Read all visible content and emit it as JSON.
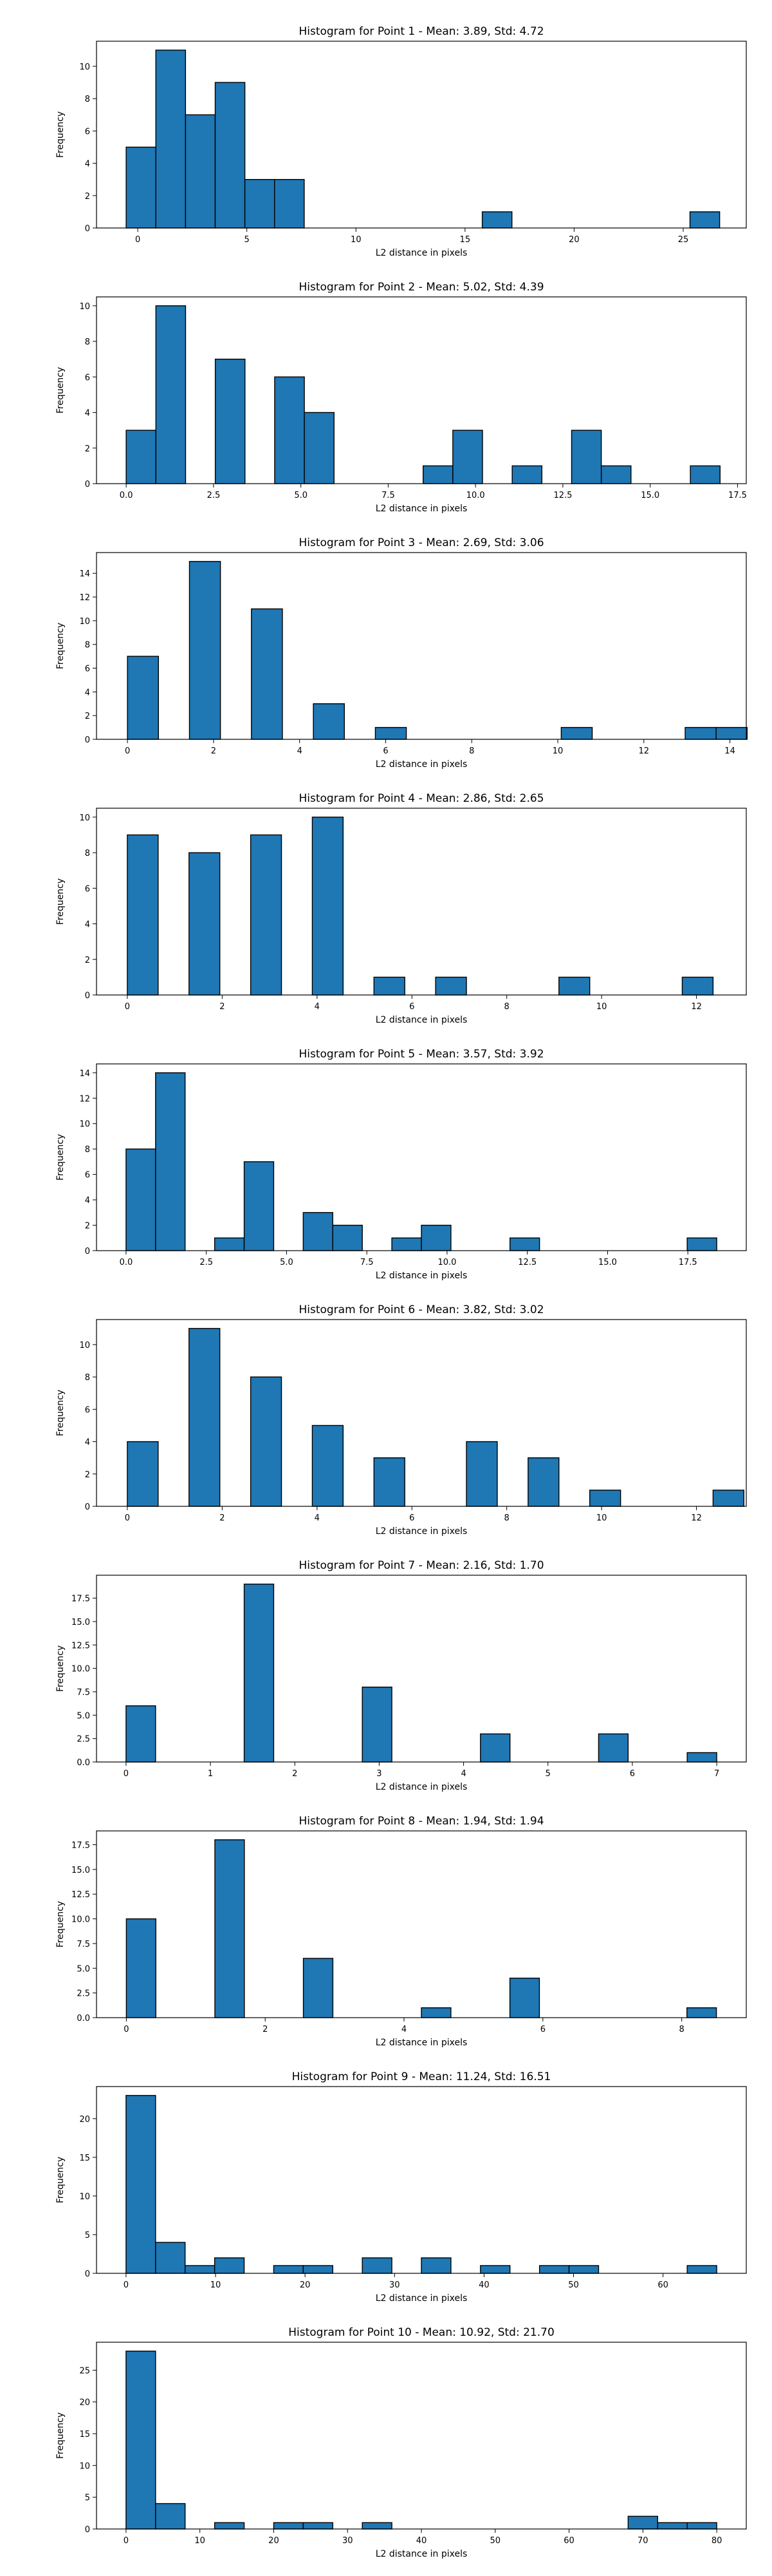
{
  "figure": {
    "background": "#ffffff"
  },
  "style": {
    "bar_fill": "#1f77b4",
    "bar_edge": "#000000",
    "axes_color": "#000000"
  },
  "chart_data": [
    {
      "type": "bar",
      "title": "Histogram for Point 1 - Mean: 3.89, Std: 4.72",
      "xlabel": "L2 distance in pixels",
      "ylabel": "Frequency",
      "grid": false,
      "xlim": [
        -1.89,
        27.89
      ],
      "ylim": [
        0,
        11.55
      ],
      "xticks": [
        0,
        5,
        10,
        15,
        20,
        25
      ],
      "xtick_labels": [
        "0",
        "5",
        "10",
        "15",
        "20",
        "25"
      ],
      "yticks": [
        0,
        2,
        4,
        6,
        8,
        10
      ],
      "ytick_labels": [
        "0",
        "2",
        "4",
        "6",
        "8",
        "10"
      ],
      "bin_edges": [
        -0.53,
        0.83,
        2.19,
        3.55,
        4.91,
        6.27,
        7.63,
        8.99,
        10.35,
        11.71,
        13.07,
        14.43,
        15.79,
        17.15,
        18.51,
        19.87,
        21.23,
        22.59,
        23.95,
        25.31,
        26.67
      ],
      "counts": [
        5,
        11,
        7,
        9,
        3,
        3,
        0,
        0,
        0,
        0,
        0,
        0,
        1,
        0,
        0,
        0,
        0,
        0,
        0,
        1
      ]
    },
    {
      "type": "bar",
      "title": "Histogram for Point 2 - Mean: 5.02, Std: 4.39",
      "xlabel": "L2 distance in pixels",
      "ylabel": "Frequency",
      "grid": false,
      "xlim": [
        -0.85,
        17.75
      ],
      "ylim": [
        0,
        10.5
      ],
      "xticks": [
        0,
        2.5,
        5,
        7.5,
        10,
        12.5,
        15,
        17.5
      ],
      "xtick_labels": [
        "0.0",
        "2.5",
        "5.0",
        "7.5",
        "10.0",
        "12.5",
        "15.0",
        "17.5"
      ],
      "yticks": [
        0,
        2,
        4,
        6,
        8,
        10
      ],
      "ytick_labels": [
        "0",
        "2",
        "4",
        "6",
        "8",
        "10"
      ],
      "bin_edges": [
        0.0,
        0.85,
        1.7,
        2.55,
        3.4,
        4.25,
        5.1,
        5.95,
        6.8,
        7.65,
        8.5,
        9.35,
        10.2,
        11.05,
        11.9,
        12.75,
        13.6,
        14.45,
        15.3,
        16.15,
        17.0
      ],
      "counts": [
        3,
        10,
        0,
        7,
        0,
        6,
        4,
        0,
        0,
        0,
        1,
        3,
        0,
        1,
        0,
        3,
        1,
        0,
        0,
        1
      ]
    },
    {
      "type": "bar",
      "title": "Histogram for Point 3 - Mean: 2.69, Std: 3.06",
      "xlabel": "L2 distance in pixels",
      "ylabel": "Frequency",
      "grid": false,
      "xlim": [
        -0.72,
        14.38
      ],
      "ylim": [
        0,
        15.75
      ],
      "xticks": [
        0,
        2,
        4,
        6,
        8,
        10,
        12,
        14
      ],
      "xtick_labels": [
        "0",
        "2",
        "4",
        "6",
        "8",
        "10",
        "12",
        "14"
      ],
      "yticks": [
        0,
        2,
        4,
        6,
        8,
        10,
        12,
        14
      ],
      "ytick_labels": [
        "0",
        "2",
        "4",
        "6",
        "8",
        "10",
        "12",
        "14"
      ],
      "bin_edges": [
        0.0,
        0.72,
        1.44,
        2.16,
        2.88,
        3.6,
        4.32,
        5.04,
        5.76,
        6.48,
        7.2,
        7.92,
        8.64,
        9.36,
        10.08,
        10.8,
        11.52,
        12.24,
        12.96,
        13.68,
        14.4
      ],
      "counts": [
        7,
        0,
        15,
        0,
        11,
        0,
        3,
        0,
        1,
        0,
        0,
        0,
        0,
        0,
        1,
        0,
        0,
        0,
        1,
        1
      ]
    },
    {
      "type": "bar",
      "title": "Histogram for Point 4 - Mean: 2.86, Std: 2.65",
      "xlabel": "L2 distance in pixels",
      "ylabel": "Frequency",
      "grid": false,
      "xlim": [
        -0.65,
        13.05
      ],
      "ylim": [
        0,
        10.5
      ],
      "xticks": [
        0,
        2,
        4,
        6,
        8,
        10,
        12
      ],
      "xtick_labels": [
        "0",
        "2",
        "4",
        "6",
        "8",
        "10",
        "12"
      ],
      "yticks": [
        0,
        2,
        4,
        6,
        8,
        10
      ],
      "ytick_labels": [
        "0",
        "2",
        "4",
        "6",
        "8",
        "10"
      ],
      "bin_edges": [
        0.0,
        0.65,
        1.3,
        1.95,
        2.6,
        3.25,
        3.9,
        4.55,
        5.2,
        5.85,
        6.5,
        7.15,
        7.8,
        8.45,
        9.1,
        9.75,
        10.4,
        11.05,
        11.7,
        12.35,
        13.0
      ],
      "counts": [
        9,
        0,
        8,
        0,
        9,
        0,
        10,
        0,
        1,
        0,
        1,
        0,
        0,
        0,
        1,
        0,
        0,
        0,
        1,
        0
      ]
    },
    {
      "type": "bar",
      "title": "Histogram for Point 5 - Mean: 3.57, Std: 3.92",
      "xlabel": "L2 distance in pixels",
      "ylabel": "Frequency",
      "grid": false,
      "xlim": [
        -0.92,
        19.32
      ],
      "ylim": [
        0,
        14.7
      ],
      "xticks": [
        0,
        2.5,
        5,
        7.5,
        10,
        12.5,
        15,
        17.5
      ],
      "xtick_labels": [
        "0.0",
        "2.5",
        "5.0",
        "7.5",
        "10.0",
        "12.5",
        "15.0",
        "17.5"
      ],
      "yticks": [
        0,
        2,
        4,
        6,
        8,
        10,
        12,
        14
      ],
      "ytick_labels": [
        "0",
        "2",
        "4",
        "6",
        "8",
        "10",
        "12",
        "14"
      ],
      "bin_edges": [
        0.0,
        0.92,
        1.84,
        2.76,
        3.68,
        4.6,
        5.52,
        6.44,
        7.36,
        8.28,
        9.2,
        10.12,
        11.04,
        11.96,
        12.88,
        13.8,
        14.72,
        15.64,
        16.56,
        17.48,
        18.4
      ],
      "counts": [
        8,
        14,
        0,
        1,
        7,
        0,
        3,
        2,
        0,
        1,
        2,
        0,
        0,
        1,
        0,
        0,
        0,
        0,
        0,
        1
      ]
    },
    {
      "type": "bar",
      "title": "Histogram for Point 6 - Mean: 3.82, Std: 3.02",
      "xlabel": "L2 distance in pixels",
      "ylabel": "Frequency",
      "grid": false,
      "xlim": [
        -0.65,
        13.05
      ],
      "ylim": [
        0,
        11.55
      ],
      "xticks": [
        0,
        2,
        4,
        6,
        8,
        10,
        12
      ],
      "xtick_labels": [
        "0",
        "2",
        "4",
        "6",
        "8",
        "10",
        "12"
      ],
      "yticks": [
        0,
        2,
        4,
        6,
        8,
        10
      ],
      "ytick_labels": [
        "0",
        "2",
        "4",
        "6",
        "8",
        "10"
      ],
      "bin_edges": [
        0.0,
        0.65,
        1.3,
        1.95,
        2.6,
        3.25,
        3.9,
        4.55,
        5.2,
        5.85,
        6.5,
        7.15,
        7.8,
        8.45,
        9.1,
        9.75,
        10.4,
        11.05,
        11.7,
        12.35,
        13.0
      ],
      "counts": [
        4,
        0,
        11,
        0,
        8,
        0,
        5,
        0,
        3,
        0,
        0,
        4,
        0,
        3,
        0,
        1,
        0,
        0,
        0,
        1
      ]
    },
    {
      "type": "bar",
      "title": "Histogram for Point 7 - Mean: 2.16, Std: 1.70",
      "xlabel": "L2 distance in pixels",
      "ylabel": "Frequency",
      "grid": false,
      "xlim": [
        -0.35,
        7.35
      ],
      "ylim": [
        0,
        19.95
      ],
      "xticks": [
        0,
        1,
        2,
        3,
        4,
        5,
        6,
        7
      ],
      "xtick_labels": [
        "0",
        "1",
        "2",
        "3",
        "4",
        "5",
        "6",
        "7"
      ],
      "yticks": [
        0,
        2.5,
        5,
        7.5,
        10,
        12.5,
        15,
        17.5
      ],
      "ytick_labels": [
        "0.0",
        "2.5",
        "5.0",
        "7.5",
        "10.0",
        "12.5",
        "15.0",
        "17.5"
      ],
      "bin_edges": [
        0.0,
        0.35,
        0.7,
        1.05,
        1.4,
        1.75,
        2.1,
        2.45,
        2.8,
        3.15,
        3.5,
        3.85,
        4.2,
        4.55,
        4.9,
        5.25,
        5.6,
        5.95,
        6.3,
        6.65,
        7.0
      ],
      "counts": [
        6,
        0,
        0,
        0,
        19,
        0,
        0,
        0,
        8,
        0,
        0,
        0,
        3,
        0,
        0,
        0,
        3,
        0,
        0,
        1
      ]
    },
    {
      "type": "bar",
      "title": "Histogram for Point 8 - Mean: 1.94, Std: 1.94",
      "xlabel": "L2 distance in pixels",
      "ylabel": "Frequency",
      "grid": false,
      "xlim": [
        -0.43,
        8.93
      ],
      "ylim": [
        0,
        18.9
      ],
      "xticks": [
        0,
        2,
        4,
        6,
        8
      ],
      "xtick_labels": [
        "0",
        "2",
        "4",
        "6",
        "8"
      ],
      "yticks": [
        0,
        2.5,
        5,
        7.5,
        10,
        12.5,
        15,
        17.5
      ],
      "ytick_labels": [
        "0.0",
        "2.5",
        "5.0",
        "7.5",
        "10.0",
        "12.5",
        "15.0",
        "17.5"
      ],
      "bin_edges": [
        0.0,
        0.425,
        0.85,
        1.275,
        1.7,
        2.125,
        2.55,
        2.975,
        3.4,
        3.825,
        4.25,
        4.675,
        5.1,
        5.525,
        5.95,
        6.375,
        6.8,
        7.225,
        7.65,
        8.075,
        8.5
      ],
      "counts": [
        10,
        0,
        0,
        18,
        0,
        0,
        6,
        0,
        0,
        0,
        1,
        0,
        0,
        4,
        0,
        0,
        0,
        0,
        0,
        1
      ]
    },
    {
      "type": "bar",
      "title": "Histogram for Point 9 - Mean: 11.24, Std: 16.51",
      "xlabel": "L2 distance in pixels",
      "ylabel": "Frequency",
      "grid": false,
      "xlim": [
        -3.3,
        69.3
      ],
      "ylim": [
        0,
        24.15
      ],
      "xticks": [
        0,
        10,
        20,
        30,
        40,
        50,
        60
      ],
      "xtick_labels": [
        "0",
        "10",
        "20",
        "30",
        "40",
        "50",
        "60"
      ],
      "yticks": [
        0,
        5,
        10,
        15,
        20
      ],
      "ytick_labels": [
        "0",
        "5",
        "10",
        "15",
        "20"
      ],
      "bin_edges": [
        0.0,
        3.3,
        6.6,
        9.9,
        13.2,
        16.5,
        19.8,
        23.1,
        26.4,
        29.7,
        33.0,
        36.3,
        39.6,
        42.9,
        46.2,
        49.5,
        52.8,
        56.1,
        59.4,
        62.7,
        66.0
      ],
      "counts": [
        23,
        4,
        1,
        2,
        0,
        1,
        1,
        0,
        2,
        0,
        2,
        0,
        1,
        0,
        1,
        1,
        0,
        0,
        0,
        1
      ]
    },
    {
      "type": "bar",
      "title": "Histogram for Point 10 - Mean: 10.92, Std: 21.70",
      "xlabel": "L2 distance in pixels",
      "ylabel": "Frequency",
      "grid": false,
      "xlim": [
        -4.0,
        84.0
      ],
      "ylim": [
        0,
        29.4
      ],
      "xticks": [
        0,
        10,
        20,
        30,
        40,
        50,
        60,
        70,
        80
      ],
      "xtick_labels": [
        "0",
        "10",
        "20",
        "30",
        "40",
        "50",
        "60",
        "70",
        "80"
      ],
      "yticks": [
        0,
        5,
        10,
        15,
        20,
        25
      ],
      "ytick_labels": [
        "0",
        "5",
        "10",
        "15",
        "20",
        "25"
      ],
      "bin_edges": [
        0.0,
        4.0,
        8.0,
        12.0,
        16.0,
        20.0,
        24.0,
        28.0,
        32.0,
        36.0,
        40.0,
        44.0,
        48.0,
        52.0,
        56.0,
        60.0,
        64.0,
        68.0,
        72.0,
        76.0,
        80.0
      ],
      "counts": [
        28,
        4,
        0,
        1,
        0,
        1,
        1,
        0,
        1,
        0,
        0,
        0,
        0,
        0,
        0,
        0,
        0,
        2,
        1,
        1
      ]
    }
  ]
}
